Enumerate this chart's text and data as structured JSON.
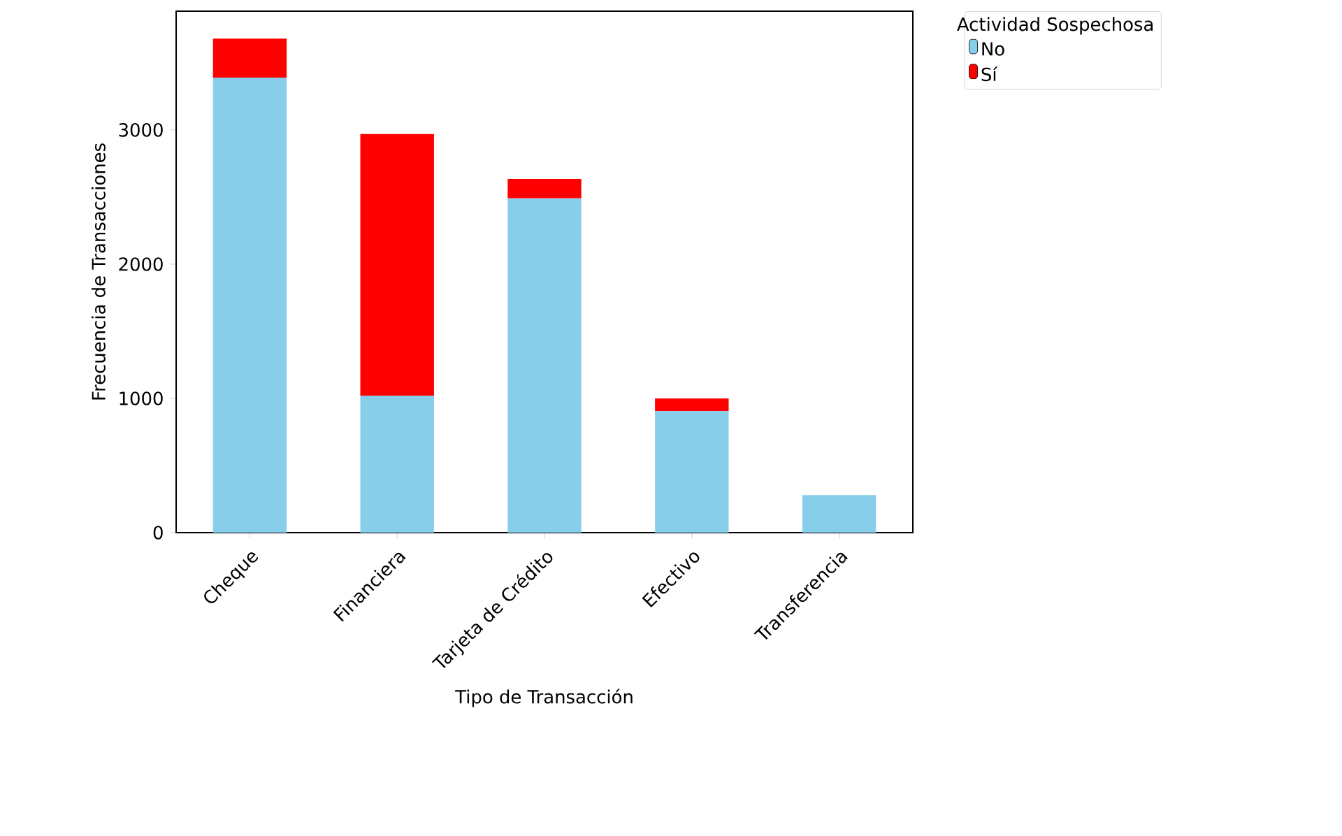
{
  "chart_data": {
    "type": "bar",
    "stacked": true,
    "xlabel": "Tipo de Transacción",
    "ylabel": "Frecuencia de Transacciones",
    "legend_title": "Actividad Sospechosa",
    "legend": "top right",
    "categories": [
      "Cheque",
      "Financiera",
      "Tarjeta de Crédito",
      "Efectivo",
      "Transferencia"
    ],
    "series": [
      {
        "name": "No",
        "color": "#87ceeb",
        "values": [
          3390,
          1020,
          2490,
          905,
          280
        ]
      },
      {
        "name": "Sí",
        "color": "#ff0000",
        "values": [
          290,
          1950,
          145,
          95,
          0
        ]
      }
    ],
    "ylim": [
      0,
      3885
    ],
    "yticks": [
      0,
      1000,
      2000,
      3000
    ]
  }
}
